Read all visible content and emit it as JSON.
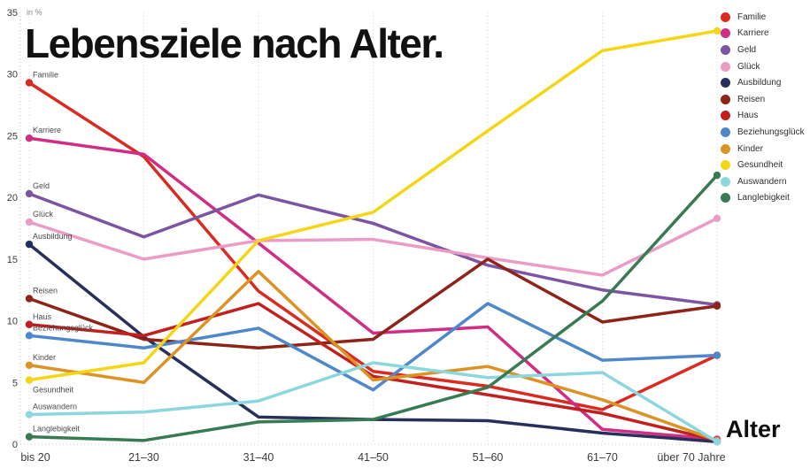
{
  "ui": {
    "title": "Lebensziele nach Alter.",
    "unit_label": "in %",
    "x_axis_label": "Alter"
  },
  "chart_data": {
    "type": "line",
    "title": "Lebensziele nach Alter.",
    "xlabel": "Alter",
    "ylabel": "in %",
    "ylim": [
      0,
      35
    ],
    "y_ticks": [
      0,
      5,
      10,
      15,
      20,
      25,
      30,
      35
    ],
    "grid": "dotted-vertical-per-category-and-dotted-baseline",
    "legend_position": "top-right",
    "categories": [
      "bis 20",
      "21–30",
      "31–40",
      "41–50",
      "51–60",
      "61–70",
      "über 70 Jahre"
    ],
    "series": [
      {
        "name": "Familie",
        "color": "#d92b21",
        "values": [
          29.3,
          23.3,
          12.4,
          5.9,
          4.7,
          2.8,
          7.2
        ]
      },
      {
        "name": "Karriere",
        "color": "#d02d85",
        "values": [
          24.8,
          23.5,
          16.3,
          9.0,
          9.5,
          1.2,
          0.4
        ]
      },
      {
        "name": "Geld",
        "color": "#7c55a2",
        "values": [
          20.3,
          16.8,
          20.2,
          17.9,
          14.5,
          12.5,
          11.3
        ]
      },
      {
        "name": "Glück",
        "color": "#eb9cc6",
        "values": [
          18.0,
          15.0,
          16.5,
          16.6,
          15.1,
          13.7,
          18.3
        ]
      },
      {
        "name": "Ausbildung",
        "color": "#27305a",
        "values": [
          16.2,
          8.7,
          2.2,
          2.0,
          1.9,
          0.9,
          0.2
        ]
      },
      {
        "name": "Reisen",
        "color": "#8e2318",
        "values": [
          11.8,
          8.5,
          7.8,
          8.5,
          15.0,
          9.9,
          11.2
        ]
      },
      {
        "name": "Haus",
        "color": "#c21f1f",
        "values": [
          9.7,
          8.8,
          11.4,
          5.5,
          4.0,
          2.5,
          0.3
        ]
      },
      {
        "name": "Beziehungsglück",
        "color": "#4f87cb",
        "values": [
          8.8,
          7.8,
          9.4,
          4.4,
          11.4,
          6.8,
          7.2
        ]
      },
      {
        "name": "Kinder",
        "color": "#dc9326",
        "values": [
          6.4,
          5.0,
          14.0,
          5.2,
          6.3,
          3.6,
          0.3
        ]
      },
      {
        "name": "Gesundheit",
        "color": "#f5d616",
        "values": [
          5.2,
          6.6,
          16.5,
          18.8,
          25.4,
          31.9,
          33.5
        ]
      },
      {
        "name": "Auswandern",
        "color": "#8cd7dd",
        "values": [
          2.4,
          2.6,
          3.5,
          6.6,
          5.4,
          5.8,
          0.2
        ]
      },
      {
        "name": "Langlebigkeit",
        "color": "#387a52",
        "values": [
          0.6,
          0.3,
          1.8,
          2.0,
          4.6,
          11.6,
          21.8
        ]
      }
    ]
  }
}
